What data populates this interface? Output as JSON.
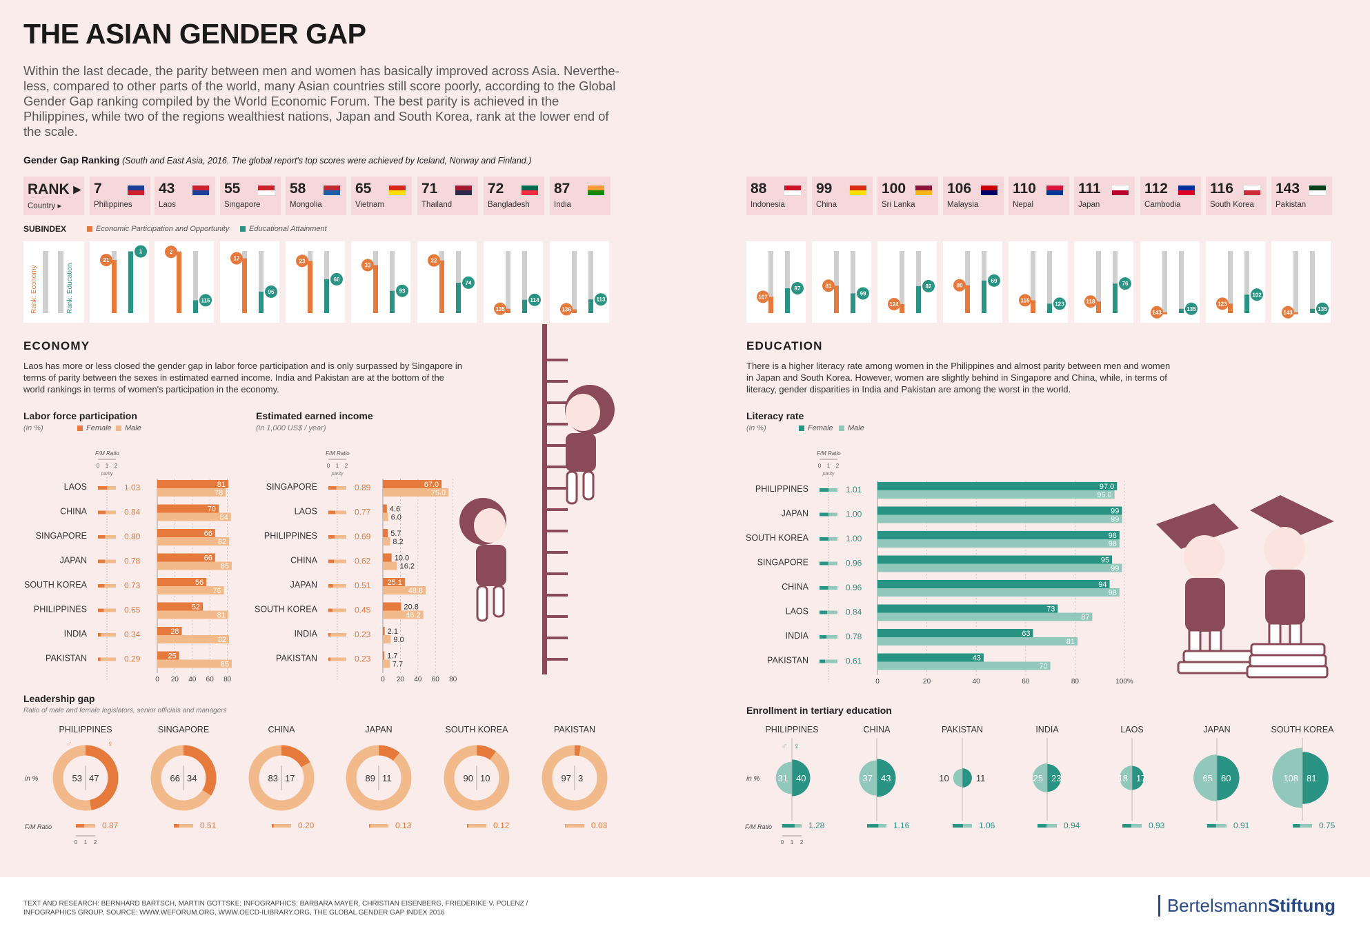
{
  "title": "THE ASIAN GENDER GAP",
  "intro": "Within the last decade, the parity between men and women has basically improved across Asia. Neverthe-less, compared to other parts of the world, many Asian countries still score poorly, according to the Global Gender Gap ranking compiled by the World Economic Forum. The best parity is achieved in the Philippines, while two of the regions wealthiest nations, Japan and South Korea, rank at the lower end of the scale.",
  "ranking": {
    "heading": "Gender Gap Ranking",
    "heading_note": "(South and East Asia, 2016. The global report's top scores were achieved by Iceland, Norway and Finland.)",
    "rank_label": "RANK",
    "country_label": "Country",
    "countries": [
      {
        "rank": "7",
        "name": "Philippines"
      },
      {
        "rank": "43",
        "name": "Laos"
      },
      {
        "rank": "55",
        "name": "Singapore"
      },
      {
        "rank": "58",
        "name": "Mongolia"
      },
      {
        "rank": "65",
        "name": "Vietnam"
      },
      {
        "rank": "71",
        "name": "Thailand"
      },
      {
        "rank": "72",
        "name": "Bangladesh"
      },
      {
        "rank": "87",
        "name": "India"
      },
      {
        "rank": "88",
        "name": "Indonesia"
      },
      {
        "rank": "99",
        "name": "China"
      },
      {
        "rank": "100",
        "name": "Sri Lanka"
      },
      {
        "rank": "106",
        "name": "Malaysia"
      },
      {
        "rank": "110",
        "name": "Nepal"
      },
      {
        "rank": "111",
        "name": "Japan"
      },
      {
        "rank": "112",
        "name": "Cambodia"
      },
      {
        "rank": "116",
        "name": "South Korea"
      },
      {
        "rank": "143",
        "name": "Pakistan"
      }
    ]
  },
  "subindex": {
    "label": "SUBINDEX",
    "legend_economy": "Economic Participation and Opportunity",
    "legend_education": "Educational Attainment",
    "axis_economy": "Rank: Economy",
    "axis_education": "Rank: Education",
    "values": [
      {
        "economy": 21,
        "education": 1
      },
      {
        "economy": 2,
        "education": 115
      },
      {
        "economy": 17,
        "education": 95
      },
      {
        "economy": 23,
        "education": 66
      },
      {
        "economy": 33,
        "education": 93
      },
      {
        "economy": 22,
        "education": 74
      },
      {
        "economy": 135,
        "education": 114
      },
      {
        "economy": 136,
        "education": 113
      },
      {
        "economy": 107,
        "education": 87
      },
      {
        "economy": 81,
        "education": 99
      },
      {
        "economy": 124,
        "education": 82
      },
      {
        "economy": 80,
        "education": 69
      },
      {
        "economy": 115,
        "education": 123
      },
      {
        "economy": 118,
        "education": 76
      },
      {
        "economy": 143,
        "education": 135
      },
      {
        "economy": 123,
        "education": 102
      },
      {
        "economy": 143,
        "education": 135
      }
    ]
  },
  "economy": {
    "title": "ECONOMY",
    "text": "Laos has more or less closed the gender gap in labor force participation and is only surpassed by Singapore in terms of parity between the sexes in estimated earned income. India and Pakistan are at the bottom of the world rankings in terms of women's participation in the economy."
  },
  "education": {
    "title": "EDUCATION",
    "text": "There is a higher literacy rate among women in the Philippines and almost parity between men and women in Japan and South Korea. However, women are slightly behind in Singapore and China, while, in terms of literacy, gender disparities in India and Pakistan are among the worst in the world."
  },
  "common": {
    "fm_ratio": "F/M Ratio",
    "parity": "parity",
    "scale_ticks": [
      "0",
      "1",
      "2"
    ],
    "female": "Female",
    "male": "Male",
    "in_pct": "(in %)",
    "in_pct_short": "in %"
  },
  "chart_data": [
    {
      "type": "bar",
      "title": "Labor force participation",
      "subtitle": "(in %)",
      "categories": [
        "LAOS",
        "CHINA",
        "SINGAPORE",
        "JAPAN",
        "SOUTH KOREA",
        "PHILIPPINES",
        "INDIA",
        "PAKISTAN"
      ],
      "ratios": [
        "1.03",
        "0.84",
        "0.80",
        "0.78",
        "0.73",
        "0.65",
        "0.34",
        "0.29"
      ],
      "series": [
        {
          "name": "Female",
          "values": [
            81,
            70,
            66,
            66,
            56,
            52,
            28,
            25
          ]
        },
        {
          "name": "Male",
          "values": [
            78,
            84,
            82,
            85,
            76,
            81,
            82,
            85
          ]
        }
      ],
      "xticks": [
        "0",
        "20",
        "40",
        "60",
        "80"
      ],
      "xlim": [
        0,
        85
      ]
    },
    {
      "type": "bar",
      "title": "Estimated earned income",
      "subtitle": "(in 1,000 US$ / year)",
      "categories": [
        "SINGAPORE",
        "LAOS",
        "PHILIPPINES",
        "CHINA",
        "JAPAN",
        "SOUTH KOREA",
        "INDIA",
        "PAKISTAN"
      ],
      "ratios": [
        "0.89",
        "0.77",
        "0.69",
        "0.62",
        "0.51",
        "0.45",
        "0.23",
        "0.23"
      ],
      "series": [
        {
          "name": "Female",
          "values": [
            67.0,
            4.6,
            5.7,
            10.0,
            25.1,
            20.8,
            2.1,
            1.7
          ]
        },
        {
          "name": "Male",
          "values": [
            75.0,
            6.0,
            8.2,
            16.2,
            48.8,
            46.2,
            9.0,
            7.7
          ]
        }
      ],
      "labels_female": [
        "67.0",
        "4.6",
        "5.7",
        "10.0",
        "25.1",
        "20.8",
        "2.1",
        "1.7"
      ],
      "labels_male": [
        "75.0",
        "6.0",
        "8.2",
        "16.2",
        "48.8",
        "46.2",
        "9.0",
        "7.7"
      ],
      "xticks": [
        "0",
        "20",
        "40",
        "60",
        "80"
      ],
      "xlim": [
        0,
        85
      ]
    },
    {
      "type": "bar",
      "title": "Literacy rate",
      "subtitle": "(in %)",
      "categories": [
        "PHILIPPINES",
        "JAPAN",
        "SOUTH KOREA",
        "SINGAPORE",
        "CHINA",
        "LAOS",
        "INDIA",
        "PAKISTAN"
      ],
      "ratios": [
        "1.01",
        "1.00",
        "1.00",
        "0.96",
        "0.96",
        "0.84",
        "0.78",
        "0.61"
      ],
      "series": [
        {
          "name": "Female",
          "values": [
            97.0,
            99,
            98,
            95,
            94,
            73,
            63,
            43
          ]
        },
        {
          "name": "Male",
          "values": [
            96.0,
            99,
            98,
            99,
            98,
            87,
            81,
            70
          ]
        }
      ],
      "labels_female": [
        "97.0",
        "99",
        "98",
        "95",
        "94",
        "73",
        "63",
        "43"
      ],
      "labels_male": [
        "96.0",
        "99",
        "98",
        "99",
        "98",
        "87",
        "81",
        "70"
      ],
      "xticks": [
        "0",
        "20",
        "40",
        "60",
        "80",
        "100%"
      ],
      "xlim": [
        0,
        100
      ]
    },
    {
      "type": "pie",
      "title": "Leadership gap",
      "subtitle": "Ratio of male and female legislators, senior officials and managers",
      "categories": [
        "PHILIPPINES",
        "SINGAPORE",
        "CHINA",
        "JAPAN",
        "SOUTH KOREA",
        "PAKISTAN"
      ],
      "male": [
        53,
        66,
        83,
        89,
        90,
        97
      ],
      "female": [
        47,
        34,
        17,
        11,
        10,
        3
      ],
      "ratios": [
        "0.87",
        "0.51",
        "0.20",
        "0.13",
        "0.12",
        "0.03"
      ]
    },
    {
      "type": "pie",
      "title": "Enrollment in tertiary education",
      "categories": [
        "PHILIPPINES",
        "CHINA",
        "PAKISTAN",
        "INDIA",
        "LAOS",
        "JAPAN",
        "SOUTH KOREA"
      ],
      "male": [
        31,
        37,
        10,
        25,
        18,
        65,
        108
      ],
      "female": [
        40,
        43,
        11,
        23,
        17,
        60,
        81
      ],
      "ratios": [
        "1.28",
        "1.16",
        "1.06",
        "0.94",
        "0.93",
        "0.91",
        "0.75"
      ]
    }
  ],
  "footer": {
    "credits": "TEXT AND RESEARCH: BERNHARD BARTSCH, MARTIN GOTTSKE; INFOGRAPHICS: BARBARA MAYER, CHRISTIAN EISENBERG, FRIEDERIKE V. POLENZ / INFOGRAPHICS GROUP, SOURCE: WWW.WEFORUM.ORG, WWW.OECD-ILIBRARY.ORG, THE GLOBAL GENDER GAP INDEX 2016",
    "logo_a": "Bertelsmann",
    "logo_b": "Stiftung"
  },
  "colors": {
    "orange": "#e57a3c",
    "orange_light": "#f2b98a",
    "teal": "#2a9484",
    "teal_light": "#92c7bc",
    "gray": "#cfcfcf",
    "maroon": "#8a4a58"
  }
}
